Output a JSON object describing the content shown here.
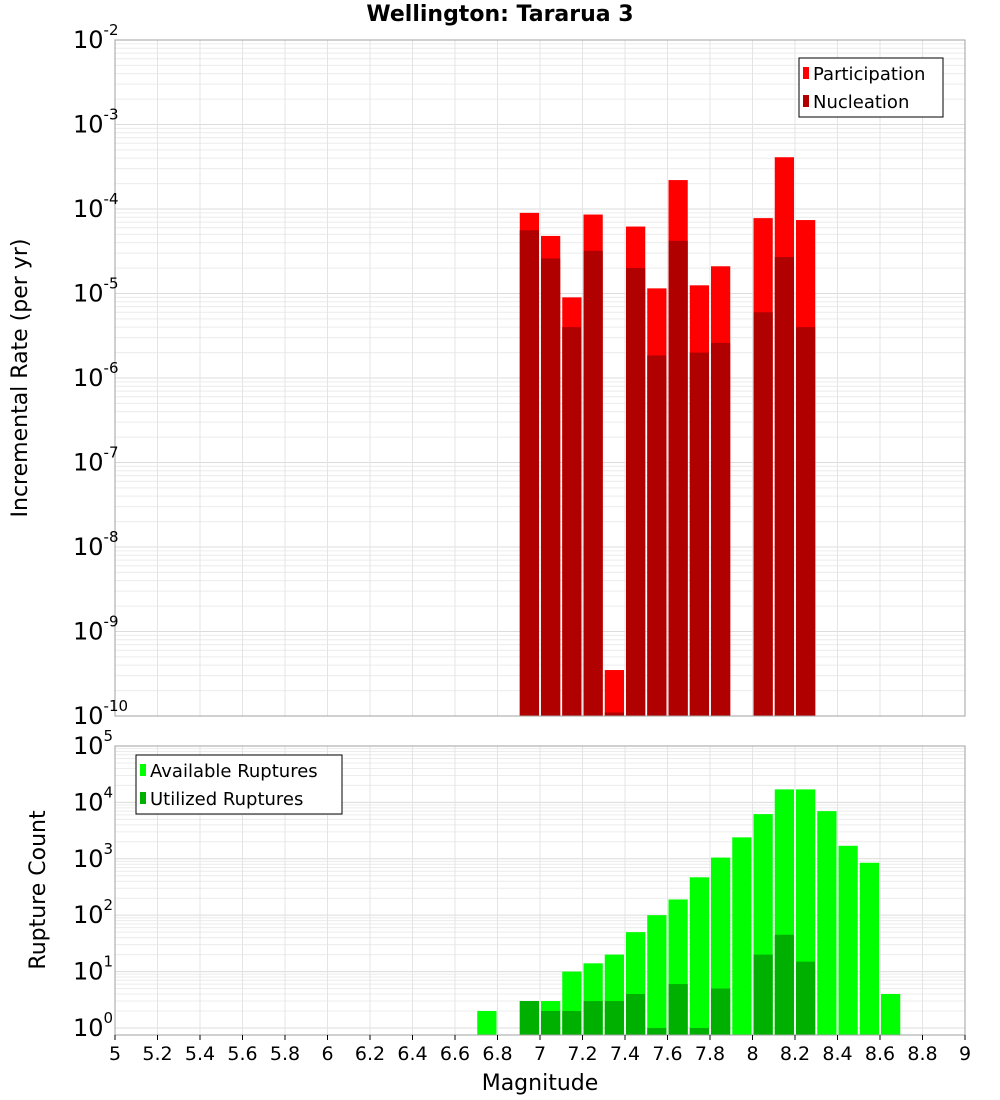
{
  "title": "Wellington: Tararua 3",
  "chart_data": [
    {
      "type": "bar",
      "ylabel": "Incremental Rate (per yr)",
      "y_scale": "log",
      "ylim": [
        1e-10,
        0.01
      ],
      "xlim": [
        5,
        9
      ],
      "bin_width": 0.1,
      "x": [
        6.95,
        7.05,
        7.15,
        7.25,
        7.35,
        7.45,
        7.55,
        7.65,
        7.75,
        7.85,
        8.05,
        8.15,
        8.25
      ],
      "series": [
        {
          "name": "Participation",
          "color": "#ff0000",
          "values": [
            9e-05,
            4.8e-05,
            9e-06,
            8.6e-05,
            3.5e-10,
            6.2e-05,
            1.15e-05,
            0.00022,
            1.25e-05,
            2.1e-05,
            7.8e-05,
            0.00041,
            7.4e-05
          ]
        },
        {
          "name": "Nucleation",
          "color": "#b00000",
          "values": [
            5.6e-05,
            2.6e-05,
            4e-06,
            3.2e-05,
            1.1e-10,
            2e-05,
            1.85e-06,
            4.2e-05,
            2e-06,
            2.6e-06,
            6e-06,
            2.7e-05,
            4e-06
          ]
        }
      ],
      "legend": "top-right",
      "grid": true
    },
    {
      "type": "bar",
      "xlabel": "Magnitude",
      "ylabel": "Rupture Count",
      "y_scale": "log",
      "ylim": [
        0.75,
        100000.0
      ],
      "xlim": [
        5,
        9
      ],
      "bin_width": 0.1,
      "x_ticks": [
        "5",
        "5.2",
        "5.4",
        "5.6",
        "5.8",
        "6",
        "6.2",
        "6.4",
        "6.6",
        "6.8",
        "7",
        "7.2",
        "7.4",
        "7.6",
        "7.8",
        "8",
        "8.2",
        "8.4",
        "8.6",
        "8.8",
        "9"
      ],
      "series": [
        {
          "name": "Available Ruptures",
          "color": "#00ff00",
          "x": [
            6.75,
            6.95,
            7.05,
            7.15,
            7.25,
            7.35,
            7.45,
            7.55,
            7.65,
            7.75,
            7.85,
            7.95,
            8.05,
            8.15,
            8.25,
            8.35,
            8.45,
            8.55,
            8.65
          ],
          "values": [
            2,
            3,
            3,
            10,
            14,
            20,
            50,
            100,
            190,
            470,
            1050,
            2400,
            6200,
            17000,
            17000,
            7000,
            1700,
            850,
            4
          ]
        },
        {
          "name": "Utilized Ruptures",
          "color": "#00b000",
          "x": [
            6.95,
            7.05,
            7.15,
            7.25,
            7.35,
            7.45,
            7.55,
            7.65,
            7.75,
            7.85,
            8.05,
            8.15,
            8.25
          ],
          "values": [
            3,
            2,
            2,
            3,
            3,
            4,
            1,
            6,
            1,
            5,
            20,
            45,
            15
          ]
        }
      ],
      "legend": "top-left",
      "grid": true
    }
  ]
}
